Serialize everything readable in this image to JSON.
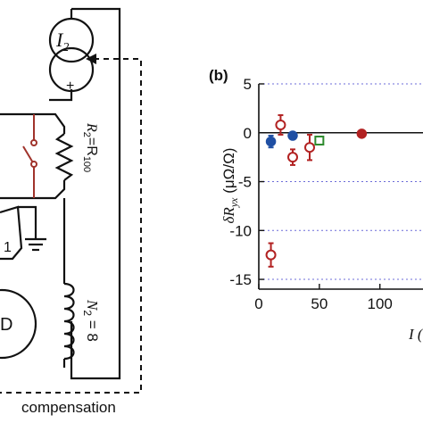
{
  "circuit": {
    "source_label_main": "I",
    "source_label_sub": "2",
    "plus_sign": "+",
    "resistor_label": "R",
    "resistor_sub1": "2",
    "resistor_eq": "=R",
    "resistor_sub2": "100",
    "coil_label_main": "N",
    "coil_label_sub": "2",
    "coil_label_eq": " = 8",
    "amp_label": "1",
    "detector_label": "D",
    "compensation_label": "compensation"
  },
  "chart_data": {
    "type": "scatter",
    "panel_label": "(b)",
    "ylabel_main": "δR",
    "ylabel_sub": "yx",
    "ylabel_unit": " (μΩ/Ω)",
    "xlabel_visible": "I (",
    "ylim": [
      -16,
      5
    ],
    "xlim": [
      0,
      140
    ],
    "yticks": [
      "5",
      "0",
      "-5",
      "-10",
      "-15"
    ],
    "yticks_values": [
      5,
      0,
      -5,
      -10,
      -15
    ],
    "xticks": [
      "0",
      "50",
      "100"
    ],
    "xticks_values": [
      0,
      50,
      100
    ],
    "grid": "dotted horizontal",
    "series": [
      {
        "color": "#1f4fa3",
        "marker": "filled-circle",
        "points": [
          {
            "x": 10,
            "y": -0.9,
            "err": 0.6
          },
          {
            "x": 28,
            "y": -0.3,
            "err": 0.3
          }
        ]
      },
      {
        "color": "#b22222",
        "marker": "open-circle",
        "points": [
          {
            "x": 18,
            "y": 0.8,
            "err": 1.0
          },
          {
            "x": 10,
            "y": -12.5,
            "err": 1.2
          },
          {
            "x": 28,
            "y": -2.5,
            "err": 0.8
          },
          {
            "x": 42,
            "y": -1.5,
            "err": 1.3
          }
        ]
      },
      {
        "color": "#2e8b2e",
        "marker": "open-square",
        "points": [
          {
            "x": 50,
            "y": -0.8,
            "err": 0.4
          }
        ]
      },
      {
        "color": "#b22222",
        "marker": "filled-circle",
        "points": [
          {
            "x": 85,
            "y": -0.1,
            "err": 0.2
          }
        ]
      }
    ]
  }
}
